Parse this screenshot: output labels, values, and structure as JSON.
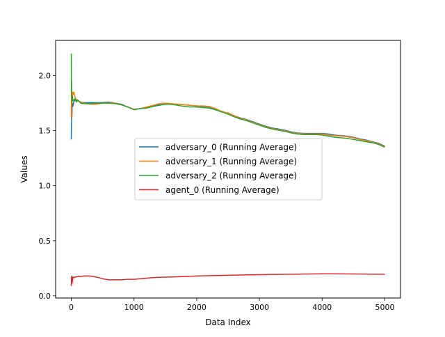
{
  "chart_data": {
    "type": "line",
    "title": "",
    "xlabel": "Data Index",
    "ylabel": "Values",
    "xlim": [
      -250,
      5250
    ],
    "ylim": [
      -0.02,
      2.32
    ],
    "xticks": [
      0,
      1000,
      2000,
      3000,
      4000,
      5000
    ],
    "yticks": [
      0.0,
      0.5,
      1.0,
      1.5,
      2.0
    ],
    "xtick_labels": [
      "0",
      "1000",
      "2000",
      "3000",
      "4000",
      "5000"
    ],
    "ytick_labels": [
      "0.0",
      "0.5",
      "1.0",
      "1.5",
      "2.0"
    ],
    "grid": false,
    "legend_position": "center",
    "series": [
      {
        "name": "adversary_0 (Running Average)",
        "color": "#1f77b4",
        "points": [
          [
            0,
            1.42
          ],
          [
            3,
            1.55
          ],
          [
            6,
            1.66
          ],
          [
            10,
            1.62
          ],
          [
            15,
            1.75
          ],
          [
            25,
            1.72
          ],
          [
            40,
            1.76
          ],
          [
            60,
            1.78
          ],
          [
            100,
            1.77
          ],
          [
            150,
            1.76
          ],
          [
            200,
            1.755
          ],
          [
            300,
            1.755
          ],
          [
            400,
            1.755
          ],
          [
            500,
            1.755
          ],
          [
            600,
            1.76
          ],
          [
            700,
            1.75
          ],
          [
            800,
            1.74
          ],
          [
            900,
            1.715
          ],
          [
            1000,
            1.695
          ],
          [
            1100,
            1.7
          ],
          [
            1200,
            1.71
          ],
          [
            1300,
            1.725
          ],
          [
            1400,
            1.735
          ],
          [
            1500,
            1.74
          ],
          [
            1600,
            1.745
          ],
          [
            1700,
            1.74
          ],
          [
            1800,
            1.735
          ],
          [
            1900,
            1.73
          ],
          [
            2000,
            1.725
          ],
          [
            2100,
            1.72
          ],
          [
            2200,
            1.715
          ],
          [
            2300,
            1.695
          ],
          [
            2400,
            1.67
          ],
          [
            2500,
            1.66
          ],
          [
            2600,
            1.635
          ],
          [
            2700,
            1.615
          ],
          [
            2800,
            1.6
          ],
          [
            2900,
            1.58
          ],
          [
            3000,
            1.56
          ],
          [
            3100,
            1.54
          ],
          [
            3200,
            1.525
          ],
          [
            3300,
            1.515
          ],
          [
            3400,
            1.505
          ],
          [
            3500,
            1.49
          ],
          [
            3600,
            1.48
          ],
          [
            3700,
            1.475
          ],
          [
            3800,
            1.475
          ],
          [
            3900,
            1.475
          ],
          [
            4000,
            1.475
          ],
          [
            4100,
            1.47
          ],
          [
            4200,
            1.46
          ],
          [
            4300,
            1.455
          ],
          [
            4400,
            1.45
          ],
          [
            4500,
            1.44
          ],
          [
            4600,
            1.425
          ],
          [
            4700,
            1.415
          ],
          [
            4800,
            1.4
          ],
          [
            4900,
            1.385
          ],
          [
            5000,
            1.36
          ]
        ]
      },
      {
        "name": "adversary_1 (Running Average)",
        "color": "#ff7f0e",
        "points": [
          [
            0,
            1.62
          ],
          [
            3,
            1.92
          ],
          [
            6,
            1.75
          ],
          [
            10,
            1.8
          ],
          [
            15,
            1.78
          ],
          [
            20,
            1.85
          ],
          [
            30,
            1.83
          ],
          [
            40,
            1.85
          ],
          [
            60,
            1.8
          ],
          [
            100,
            1.77
          ],
          [
            150,
            1.76
          ],
          [
            200,
            1.75
          ],
          [
            300,
            1.74
          ],
          [
            400,
            1.74
          ],
          [
            500,
            1.75
          ],
          [
            600,
            1.755
          ],
          [
            700,
            1.75
          ],
          [
            800,
            1.735
          ],
          [
            900,
            1.715
          ],
          [
            1000,
            1.695
          ],
          [
            1100,
            1.7
          ],
          [
            1200,
            1.715
          ],
          [
            1300,
            1.73
          ],
          [
            1400,
            1.745
          ],
          [
            1500,
            1.75
          ],
          [
            1600,
            1.745
          ],
          [
            1700,
            1.74
          ],
          [
            1800,
            1.735
          ],
          [
            1900,
            1.73
          ],
          [
            2000,
            1.725
          ],
          [
            2100,
            1.725
          ],
          [
            2200,
            1.72
          ],
          [
            2300,
            1.7
          ],
          [
            2400,
            1.675
          ],
          [
            2500,
            1.66
          ],
          [
            2600,
            1.635
          ],
          [
            2700,
            1.61
          ],
          [
            2800,
            1.595
          ],
          [
            2900,
            1.575
          ],
          [
            3000,
            1.555
          ],
          [
            3100,
            1.535
          ],
          [
            3200,
            1.52
          ],
          [
            3300,
            1.51
          ],
          [
            3400,
            1.5
          ],
          [
            3500,
            1.485
          ],
          [
            3600,
            1.475
          ],
          [
            3700,
            1.47
          ],
          [
            3800,
            1.47
          ],
          [
            3900,
            1.47
          ],
          [
            4000,
            1.47
          ],
          [
            4100,
            1.46
          ],
          [
            4200,
            1.455
          ],
          [
            4300,
            1.45
          ],
          [
            4400,
            1.445
          ],
          [
            4500,
            1.435
          ],
          [
            4600,
            1.42
          ],
          [
            4700,
            1.41
          ],
          [
            4800,
            1.395
          ],
          [
            4900,
            1.38
          ],
          [
            5000,
            1.355
          ]
        ]
      },
      {
        "name": "adversary_2 (Running Average)",
        "color": "#2ca02c",
        "points": [
          [
            0,
            2.2
          ],
          [
            2,
            1.85
          ],
          [
            4,
            1.95
          ],
          [
            6,
            1.78
          ],
          [
            10,
            1.75
          ],
          [
            15,
            1.82
          ],
          [
            25,
            1.77
          ],
          [
            40,
            1.78
          ],
          [
            60,
            1.79
          ],
          [
            80,
            1.76
          ],
          [
            100,
            1.78
          ],
          [
            150,
            1.75
          ],
          [
            200,
            1.745
          ],
          [
            300,
            1.745
          ],
          [
            400,
            1.75
          ],
          [
            500,
            1.75
          ],
          [
            600,
            1.75
          ],
          [
            700,
            1.745
          ],
          [
            800,
            1.735
          ],
          [
            900,
            1.715
          ],
          [
            1000,
            1.69
          ],
          [
            1100,
            1.7
          ],
          [
            1200,
            1.705
          ],
          [
            1300,
            1.72
          ],
          [
            1400,
            1.73
          ],
          [
            1500,
            1.74
          ],
          [
            1600,
            1.74
          ],
          [
            1700,
            1.73
          ],
          [
            1800,
            1.72
          ],
          [
            1900,
            1.715
          ],
          [
            2000,
            1.715
          ],
          [
            2100,
            1.71
          ],
          [
            2200,
            1.705
          ],
          [
            2300,
            1.69
          ],
          [
            2400,
            1.67
          ],
          [
            2500,
            1.65
          ],
          [
            2600,
            1.625
          ],
          [
            2700,
            1.605
          ],
          [
            2800,
            1.59
          ],
          [
            2900,
            1.57
          ],
          [
            3000,
            1.55
          ],
          [
            3100,
            1.53
          ],
          [
            3200,
            1.515
          ],
          [
            3300,
            1.505
          ],
          [
            3400,
            1.495
          ],
          [
            3500,
            1.48
          ],
          [
            3600,
            1.47
          ],
          [
            3700,
            1.465
          ],
          [
            3800,
            1.465
          ],
          [
            3900,
            1.465
          ],
          [
            4000,
            1.46
          ],
          [
            4100,
            1.45
          ],
          [
            4200,
            1.44
          ],
          [
            4300,
            1.435
          ],
          [
            4400,
            1.43
          ],
          [
            4500,
            1.42
          ],
          [
            4600,
            1.41
          ],
          [
            4700,
            1.4
          ],
          [
            4800,
            1.39
          ],
          [
            4900,
            1.375
          ],
          [
            5000,
            1.35
          ]
        ]
      },
      {
        "name": "agent_0 (Running Average)",
        "color": "#d62728",
        "points": [
          [
            0,
            0.09
          ],
          [
            3,
            0.17
          ],
          [
            6,
            0.11
          ],
          [
            10,
            0.18
          ],
          [
            15,
            0.12
          ],
          [
            20,
            0.16
          ],
          [
            30,
            0.17
          ],
          [
            40,
            0.165
          ],
          [
            60,
            0.17
          ],
          [
            100,
            0.175
          ],
          [
            150,
            0.175
          ],
          [
            200,
            0.18
          ],
          [
            300,
            0.18
          ],
          [
            350,
            0.175
          ],
          [
            400,
            0.17
          ],
          [
            500,
            0.155
          ],
          [
            600,
            0.145
          ],
          [
            700,
            0.145
          ],
          [
            800,
            0.145
          ],
          [
            900,
            0.15
          ],
          [
            1000,
            0.15
          ],
          [
            1100,
            0.155
          ],
          [
            1200,
            0.16
          ],
          [
            1300,
            0.165
          ],
          [
            1400,
            0.168
          ],
          [
            1500,
            0.17
          ],
          [
            1700,
            0.173
          ],
          [
            2000,
            0.18
          ],
          [
            2200,
            0.183
          ],
          [
            2500,
            0.186
          ],
          [
            2800,
            0.19
          ],
          [
            3000,
            0.192
          ],
          [
            3200,
            0.194
          ],
          [
            3500,
            0.196
          ],
          [
            3800,
            0.198
          ],
          [
            4000,
            0.2
          ],
          [
            4200,
            0.2
          ],
          [
            4500,
            0.198
          ],
          [
            4800,
            0.197
          ],
          [
            5000,
            0.196
          ]
        ]
      }
    ]
  }
}
